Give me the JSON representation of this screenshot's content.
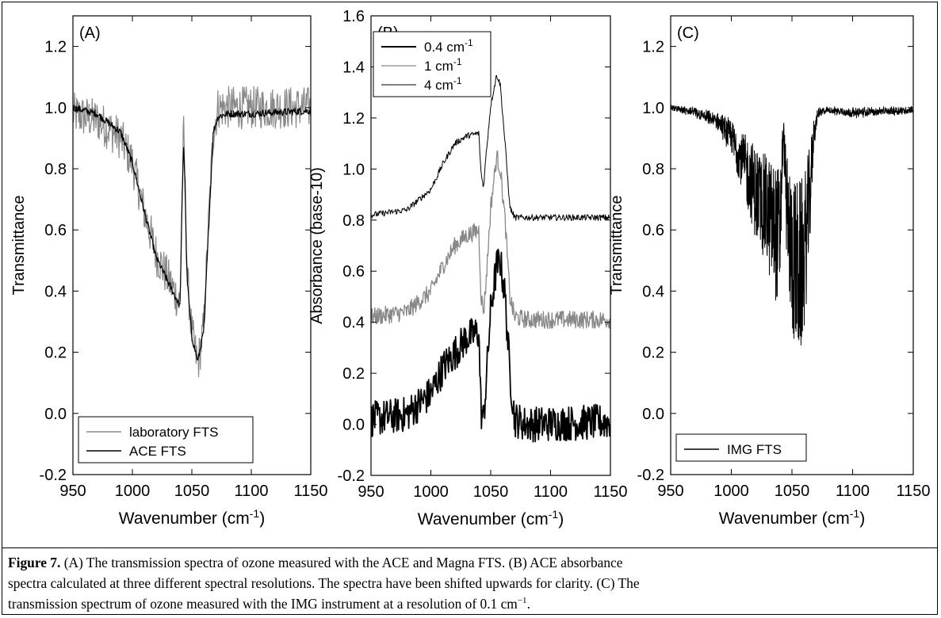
{
  "chart_data": [
    {
      "type": "line",
      "panel_label": "(A)",
      "ylabel": "Transmittance",
      "xlabel": "Wavenumber (cm",
      "xlabel_sup": "-1",
      "xlabel_close": ")",
      "xlim": [
        950,
        1150
      ],
      "ylim": [
        -0.2,
        1.3
      ],
      "x_ticks": [
        950,
        1000,
        1050,
        1100,
        1150
      ],
      "y_ticks": [
        -0.2,
        0.0,
        0.2,
        0.4,
        0.6,
        0.8,
        1.0,
        1.2
      ],
      "x_tick_labels": [
        "950",
        "1000",
        "1050",
        "1100",
        "1150"
      ],
      "y_tick_labels": [
        "-0.2",
        "0.0",
        "0.2",
        "0.4",
        "0.6",
        "0.8",
        "1.0",
        "1.2"
      ],
      "legend": {
        "placement": "bottom-left",
        "entries": [
          {
            "label": "laboratory FTS",
            "color": "#888888"
          },
          {
            "label": "ACE FTS",
            "color": "#000000"
          }
        ]
      },
      "series": [
        {
          "name": "laboratory FTS",
          "color": "#888888",
          "noise": 0.07,
          "x": [
            950,
            970,
            990,
            1000,
            1010,
            1020,
            1030,
            1035,
            1040,
            1042,
            1043,
            1044,
            1046,
            1050,
            1055,
            1060,
            1065,
            1068,
            1072,
            1080,
            1100,
            1150
          ],
          "y": [
            0.98,
            0.96,
            0.9,
            0.82,
            0.66,
            0.52,
            0.44,
            0.4,
            0.36,
            0.75,
            0.93,
            0.8,
            0.45,
            0.26,
            0.16,
            0.28,
            0.7,
            0.92,
            1.0,
            1.0,
            1.0,
            1.0
          ]
        },
        {
          "name": "ACE FTS",
          "color": "#000000",
          "noise": 0.012,
          "x": [
            950,
            970,
            990,
            1000,
            1010,
            1020,
            1030,
            1035,
            1040,
            1042,
            1043,
            1044,
            1046,
            1050,
            1055,
            1060,
            1065,
            1068,
            1072,
            1080,
            1100,
            1150
          ],
          "y": [
            1.0,
            0.98,
            0.92,
            0.82,
            0.66,
            0.51,
            0.43,
            0.39,
            0.35,
            0.72,
            0.89,
            0.78,
            0.44,
            0.25,
            0.17,
            0.27,
            0.68,
            0.92,
            0.97,
            0.98,
            0.98,
            0.99
          ]
        }
      ]
    },
    {
      "type": "line",
      "panel_label": "(B)",
      "ylabel": "Absorbance (base-10)",
      "xlabel": "Wavenumber (cm",
      "xlabel_sup": "-1",
      "xlabel_close": ")",
      "xlim": [
        950,
        1150
      ],
      "ylim": [
        -0.2,
        1.6
      ],
      "x_ticks": [
        950,
        1000,
        1050,
        1100,
        1150
      ],
      "y_ticks": [
        -0.2,
        0.0,
        0.2,
        0.4,
        0.6,
        0.8,
        1.0,
        1.2,
        1.4,
        1.6
      ],
      "x_tick_labels": [
        "950",
        "1000",
        "1050",
        "1100",
        "1150"
      ],
      "y_tick_labels": [
        "-0.2",
        "0.0",
        "0.2",
        "0.4",
        "0.6",
        "0.8",
        "1.0",
        "1.2",
        "1.4",
        "1.6"
      ],
      "legend": {
        "placement": "top-left",
        "entries": [
          {
            "label": "0.4 cm",
            "sup": "-1",
            "color": "#000000",
            "width": 2.0
          },
          {
            "label": "1 cm",
            "sup": "-1",
            "color": "#888888",
            "width": 1.3
          },
          {
            "label": "4 cm",
            "sup": "-1",
            "color": "#000000",
            "width": 1.0
          }
        ]
      },
      "series": [
        {
          "name": "0.4 cm-1",
          "color": "#000000",
          "width": 1.8,
          "noise": 0.07,
          "x": [
            950,
            980,
            1000,
            1010,
            1020,
            1030,
            1040,
            1042,
            1044,
            1046,
            1050,
            1055,
            1058,
            1062,
            1066,
            1070,
            1080,
            1150
          ],
          "y": [
            0.02,
            0.04,
            0.12,
            0.22,
            0.28,
            0.34,
            0.36,
            0.05,
            0.02,
            0.15,
            0.45,
            0.62,
            0.64,
            0.5,
            0.2,
            0.02,
            0.0,
            0.01
          ]
        },
        {
          "name": "1 cm-1",
          "color": "#888888",
          "width": 1.3,
          "noise": 0.035,
          "x": [
            950,
            980,
            1000,
            1010,
            1020,
            1030,
            1040,
            1042,
            1044,
            1046,
            1050,
            1055,
            1058,
            1062,
            1066,
            1070,
            1080,
            1150
          ],
          "y": [
            0.42,
            0.44,
            0.52,
            0.62,
            0.7,
            0.74,
            0.76,
            0.5,
            0.44,
            0.55,
            0.85,
            1.05,
            1.0,
            0.8,
            0.5,
            0.42,
            0.41,
            0.41
          ]
        },
        {
          "name": "4 cm-1",
          "color": "#000000",
          "width": 1.0,
          "noise": 0.012,
          "x": [
            950,
            980,
            1000,
            1010,
            1020,
            1030,
            1040,
            1042,
            1044,
            1046,
            1050,
            1055,
            1058,
            1062,
            1066,
            1070,
            1080,
            1150
          ],
          "y": [
            0.82,
            0.84,
            0.92,
            1.02,
            1.1,
            1.13,
            1.14,
            0.98,
            0.93,
            1.05,
            1.25,
            1.37,
            1.33,
            1.1,
            0.85,
            0.81,
            0.81,
            0.81
          ]
        }
      ]
    },
    {
      "type": "line",
      "panel_label": "(C)",
      "ylabel": "Transmittance",
      "xlabel": "Wavenumber (cm",
      "xlabel_sup": "-1",
      "xlabel_close": ")",
      "xlim": [
        950,
        1150
      ],
      "ylim": [
        -0.2,
        1.3
      ],
      "x_ticks": [
        950,
        1000,
        1050,
        1100,
        1150
      ],
      "y_ticks": [
        -0.2,
        0.0,
        0.2,
        0.4,
        0.6,
        0.8,
        1.0,
        1.2
      ],
      "x_tick_labels": [
        "950",
        "1000",
        "1050",
        "1100",
        "1150"
      ],
      "y_tick_labels": [
        "-0.2",
        "0.0",
        "0.2",
        "0.4",
        "0.6",
        "0.8",
        "1.0",
        "1.2"
      ],
      "legend": {
        "placement": "bottom-left",
        "entries": [
          {
            "label": "IMG FTS",
            "color": "#000000"
          }
        ]
      },
      "series": [
        {
          "name": "IMG FTS",
          "color": "#000000",
          "noise": 0.0,
          "dense": true,
          "x": [
            950,
            970,
            990,
            1000,
            1010,
            1020,
            1030,
            1035,
            1040,
            1042,
            1043,
            1044,
            1046,
            1050,
            1055,
            1060,
            1065,
            1068,
            1072,
            1080,
            1100,
            1150
          ],
          "y": [
            1.0,
            0.98,
            0.94,
            0.88,
            0.78,
            0.66,
            0.58,
            0.52,
            0.48,
            0.8,
            0.9,
            0.8,
            0.55,
            0.42,
            0.34,
            0.4,
            0.66,
            0.9,
            0.98,
            0.99,
            0.98,
            0.99
          ]
        }
      ]
    }
  ],
  "caption": {
    "label": "Figure 7.",
    "line1": " (A) The transmission spectra of ozone measured with the ACE and Magna FTS. (B) ACE absorbance",
    "line2": "spectra calculated at three different spectral resolutions. The spectra have been shifted upwards for clarity. (C) The",
    "line3": "transmission spectrum of ozone measured with the IMG instrument at a resolution of 0.1 cm",
    "line3_sup": "−1",
    "line3_end": "."
  }
}
